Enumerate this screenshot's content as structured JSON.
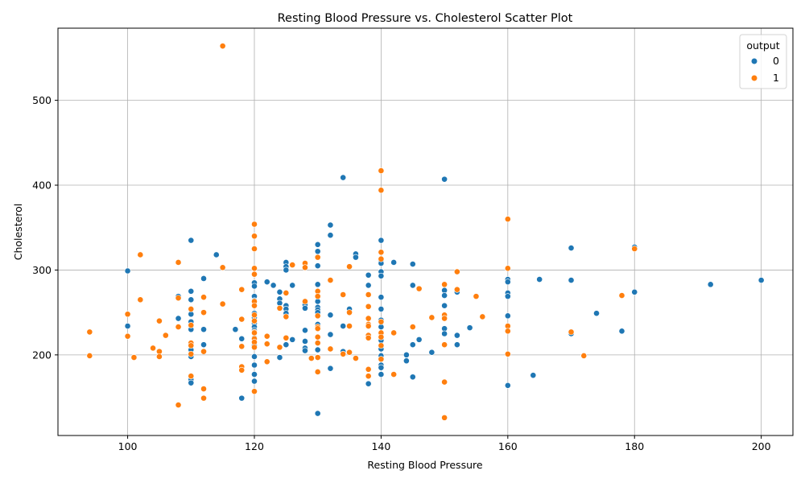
{
  "chart_data": {
    "type": "scatter",
    "title": "Resting Blood Pressure vs. Cholesterol Scatter Plot",
    "xlabel": "Resting Blood Pressure",
    "ylabel": "Cholesterol",
    "xlim": [
      89,
      205
    ],
    "ylim": [
      105,
      585
    ],
    "xticks": [
      100,
      120,
      140,
      160,
      180,
      200
    ],
    "yticks": [
      200,
      300,
      400,
      500
    ],
    "grid": true,
    "legend": {
      "title": "output",
      "placement": "top-right"
    },
    "series": [
      {
        "name": "0",
        "color": "#1f77b4",
        "points": [
          [
            100,
            234
          ],
          [
            100,
            299
          ],
          [
            108,
            243
          ],
          [
            108,
            269
          ],
          [
            110,
            335
          ],
          [
            110,
            275
          ],
          [
            110,
            265
          ],
          [
            110,
            248
          ],
          [
            110,
            239
          ],
          [
            110,
            230
          ],
          [
            110,
            206
          ],
          [
            110,
            198
          ],
          [
            110,
            175
          ],
          [
            110,
            171
          ],
          [
            110,
            167
          ],
          [
            112,
            290
          ],
          [
            112,
            230
          ],
          [
            112,
            212
          ],
          [
            114,
            318
          ],
          [
            117,
            230
          ],
          [
            118,
            219
          ],
          [
            118,
            149
          ],
          [
            120,
            285
          ],
          [
            120,
            281
          ],
          [
            120,
            269
          ],
          [
            120,
            264
          ],
          [
            120,
            249
          ],
          [
            120,
            244
          ],
          [
            120,
            237
          ],
          [
            120,
            233
          ],
          [
            120,
            229
          ],
          [
            120,
            220
          ],
          [
            120,
            211
          ],
          [
            120,
            198
          ],
          [
            120,
            188
          ],
          [
            120,
            177
          ],
          [
            120,
            169
          ],
          [
            122,
            286
          ],
          [
            123,
            282
          ],
          [
            124,
            274
          ],
          [
            124,
            266
          ],
          [
            124,
            261
          ],
          [
            124,
            197
          ],
          [
            125,
            309
          ],
          [
            125,
            304
          ],
          [
            125,
            300
          ],
          [
            125,
            258
          ],
          [
            125,
            254
          ],
          [
            125,
            249
          ],
          [
            125,
            212
          ],
          [
            126,
            282
          ],
          [
            126,
            218
          ],
          [
            128,
            259
          ],
          [
            128,
            255
          ],
          [
            128,
            229
          ],
          [
            128,
            216
          ],
          [
            128,
            208
          ],
          [
            128,
            205
          ],
          [
            130,
            330
          ],
          [
            130,
            322
          ],
          [
            130,
            305
          ],
          [
            130,
            283
          ],
          [
            130,
            263
          ],
          [
            130,
            256
          ],
          [
            130,
            253
          ],
          [
            130,
            250
          ],
          [
            130,
            236
          ],
          [
            130,
            206
          ],
          [
            130,
            131
          ],
          [
            132,
            353
          ],
          [
            132,
            341
          ],
          [
            132,
            247
          ],
          [
            132,
            224
          ],
          [
            132,
            184
          ],
          [
            134,
            409
          ],
          [
            134,
            234
          ],
          [
            134,
            204
          ],
          [
            135,
            254
          ],
          [
            136,
            319
          ],
          [
            136,
            315
          ],
          [
            138,
            294
          ],
          [
            138,
            282
          ],
          [
            138,
            166
          ],
          [
            140,
            335
          ],
          [
            140,
            311
          ],
          [
            140,
            308
          ],
          [
            140,
            298
          ],
          [
            140,
            293
          ],
          [
            140,
            268
          ],
          [
            140,
            254
          ],
          [
            140,
            241
          ],
          [
            140,
            233
          ],
          [
            140,
            217
          ],
          [
            140,
            207
          ],
          [
            140,
            199
          ],
          [
            140,
            188
          ],
          [
            140,
            185
          ],
          [
            140,
            177
          ],
          [
            142,
            309
          ],
          [
            144,
            200
          ],
          [
            144,
            193
          ],
          [
            145,
            307
          ],
          [
            145,
            282
          ],
          [
            145,
            212
          ],
          [
            145,
            174
          ],
          [
            146,
            218
          ],
          [
            148,
            203
          ],
          [
            150,
            407
          ],
          [
            150,
            276
          ],
          [
            150,
            270
          ],
          [
            150,
            258
          ],
          [
            150,
            245
          ],
          [
            150,
            231
          ],
          [
            150,
            225
          ],
          [
            152,
            274
          ],
          [
            152,
            223
          ],
          [
            152,
            212
          ],
          [
            154,
            232
          ],
          [
            160,
            289
          ],
          [
            160,
            286
          ],
          [
            160,
            273
          ],
          [
            160,
            269
          ],
          [
            160,
            246
          ],
          [
            160,
            164
          ],
          [
            164,
            176
          ],
          [
            165,
            289
          ],
          [
            170,
            326
          ],
          [
            170,
            288
          ],
          [
            170,
            225
          ],
          [
            174,
            249
          ],
          [
            178,
            228
          ],
          [
            180,
            327
          ],
          [
            180,
            274
          ],
          [
            192,
            283
          ],
          [
            200,
            288
          ]
        ]
      },
      {
        "name": "1",
        "color": "#ff7f0e",
        "points": [
          [
            94,
            227
          ],
          [
            94,
            199
          ],
          [
            100,
            248
          ],
          [
            100,
            222
          ],
          [
            101,
            197
          ],
          [
            102,
            318
          ],
          [
            102,
            265
          ],
          [
            104,
            208
          ],
          [
            105,
            240
          ],
          [
            105,
            204
          ],
          [
            105,
            198
          ],
          [
            106,
            223
          ],
          [
            108,
            309
          ],
          [
            108,
            267
          ],
          [
            108,
            233
          ],
          [
            108,
            141
          ],
          [
            110,
            254
          ],
          [
            110,
            235
          ],
          [
            110,
            214
          ],
          [
            110,
            211
          ],
          [
            110,
            201
          ],
          [
            110,
            175
          ],
          [
            112,
            268
          ],
          [
            112,
            250
          ],
          [
            112,
            204
          ],
          [
            112,
            160
          ],
          [
            112,
            149
          ],
          [
            115,
            564
          ],
          [
            115,
            303
          ],
          [
            115,
            260
          ],
          [
            118,
            277
          ],
          [
            118,
            242
          ],
          [
            118,
            210
          ],
          [
            118,
            186
          ],
          [
            118,
            182
          ],
          [
            120,
            354
          ],
          [
            120,
            340
          ],
          [
            120,
            325
          ],
          [
            120,
            302
          ],
          [
            120,
            295
          ],
          [
            120,
            263
          ],
          [
            120,
            258
          ],
          [
            120,
            247
          ],
          [
            120,
            240
          ],
          [
            120,
            227
          ],
          [
            120,
            226
          ],
          [
            120,
            219
          ],
          [
            120,
            215
          ],
          [
            120,
            209
          ],
          [
            120,
            157
          ],
          [
            122,
            222
          ],
          [
            122,
            213
          ],
          [
            122,
            192
          ],
          [
            124,
            255
          ],
          [
            124,
            209
          ],
          [
            125,
            273
          ],
          [
            125,
            245
          ],
          [
            125,
            220
          ],
          [
            126,
            306
          ],
          [
            128,
            308
          ],
          [
            128,
            303
          ],
          [
            128,
            263
          ],
          [
            129,
            196
          ],
          [
            130,
            315
          ],
          [
            130,
            275
          ],
          [
            130,
            269
          ],
          [
            130,
            246
          ],
          [
            130,
            233
          ],
          [
            130,
            231
          ],
          [
            130,
            221
          ],
          [
            130,
            214
          ],
          [
            130,
            197
          ],
          [
            130,
            180
          ],
          [
            132,
            288
          ],
          [
            132,
            207
          ],
          [
            134,
            271
          ],
          [
            134,
            201
          ],
          [
            135,
            304
          ],
          [
            135,
            250
          ],
          [
            135,
            234
          ],
          [
            135,
            203
          ],
          [
            136,
            196
          ],
          [
            138,
            271
          ],
          [
            138,
            257
          ],
          [
            138,
            243
          ],
          [
            138,
            236
          ],
          [
            138,
            234
          ],
          [
            138,
            223
          ],
          [
            138,
            220
          ],
          [
            138,
            183
          ],
          [
            138,
            175
          ],
          [
            140,
            417
          ],
          [
            140,
            394
          ],
          [
            140,
            321
          ],
          [
            140,
            313
          ],
          [
            140,
            239
          ],
          [
            140,
            226
          ],
          [
            140,
            221
          ],
          [
            140,
            211
          ],
          [
            140,
            195
          ],
          [
            142,
            226
          ],
          [
            142,
            177
          ],
          [
            145,
            233
          ],
          [
            146,
            278
          ],
          [
            148,
            244
          ],
          [
            150,
            283
          ],
          [
            150,
            247
          ],
          [
            150,
            243
          ],
          [
            150,
            212
          ],
          [
            150,
            168
          ],
          [
            150,
            126
          ],
          [
            152,
            298
          ],
          [
            152,
            277
          ],
          [
            155,
            269
          ],
          [
            156,
            245
          ],
          [
            160,
            360
          ],
          [
            160,
            302
          ],
          [
            160,
            234
          ],
          [
            160,
            228
          ],
          [
            160,
            201
          ],
          [
            170,
            227
          ],
          [
            172,
            199
          ],
          [
            178,
            270
          ],
          [
            180,
            325
          ]
        ]
      }
    ]
  }
}
